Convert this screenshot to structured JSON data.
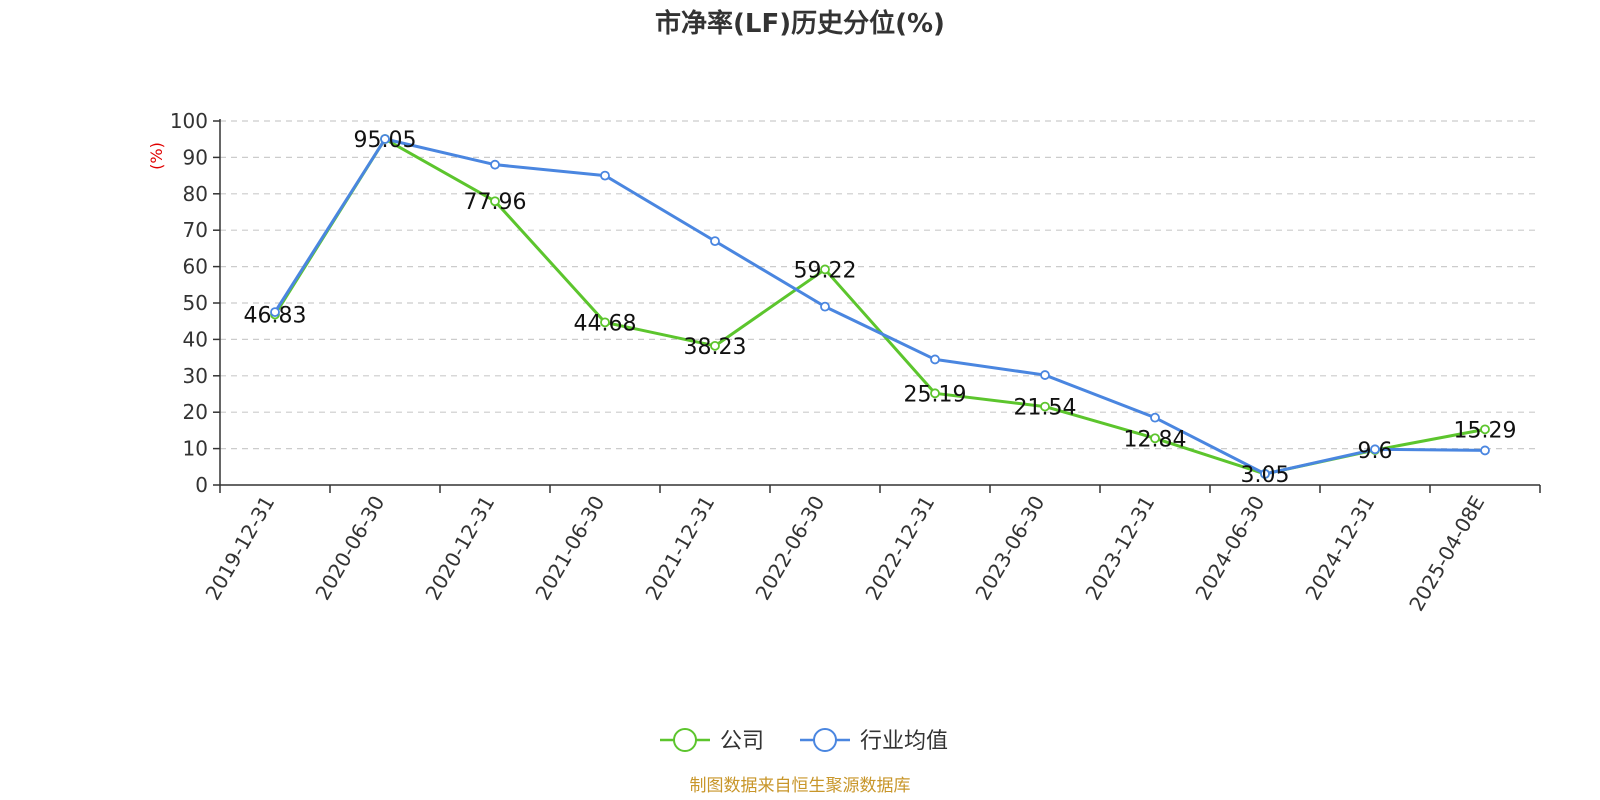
{
  "colors": {
    "company": "#5cc52d",
    "industry": "#4a86e0",
    "ylabel": "#e00000",
    "source": "#c8962a"
  },
  "chart_data": {
    "type": "line",
    "title": "市净率(LF)历史分位(%)",
    "ylabel": "(%)",
    "xlabel": "",
    "ylim": [
      0,
      100
    ],
    "yticks": [
      0,
      10,
      20,
      30,
      40,
      50,
      60,
      70,
      80,
      90,
      100
    ],
    "grid": true,
    "legend_position": "bottom-center",
    "categories": [
      "2019-12-31",
      "2020-06-30",
      "2020-12-31",
      "2021-06-30",
      "2021-12-31",
      "2022-06-30",
      "2022-12-31",
      "2023-06-30",
      "2023-12-31",
      "2024-06-30",
      "2024-12-31",
      "2025-04-08E"
    ],
    "series": [
      {
        "name": "公司",
        "values": [
          46.83,
          95.05,
          77.96,
          44.68,
          38.23,
          59.22,
          25.19,
          21.54,
          12.84,
          3.05,
          9.6,
          15.29
        ],
        "labels": [
          "46.83",
          "95.05",
          "77.96",
          "44.68",
          "38.23",
          "59.22",
          "25.19",
          "21.54",
          "12.84",
          "3.05",
          "9.6",
          "15.29"
        ]
      },
      {
        "name": "行业均值",
        "values": [
          47.5,
          95.05,
          88,
          85,
          67,
          49,
          34.5,
          30.2,
          18.5,
          3.05,
          9.8,
          9.5
        ]
      }
    ]
  },
  "source": "制图数据来自恒生聚源数据库"
}
